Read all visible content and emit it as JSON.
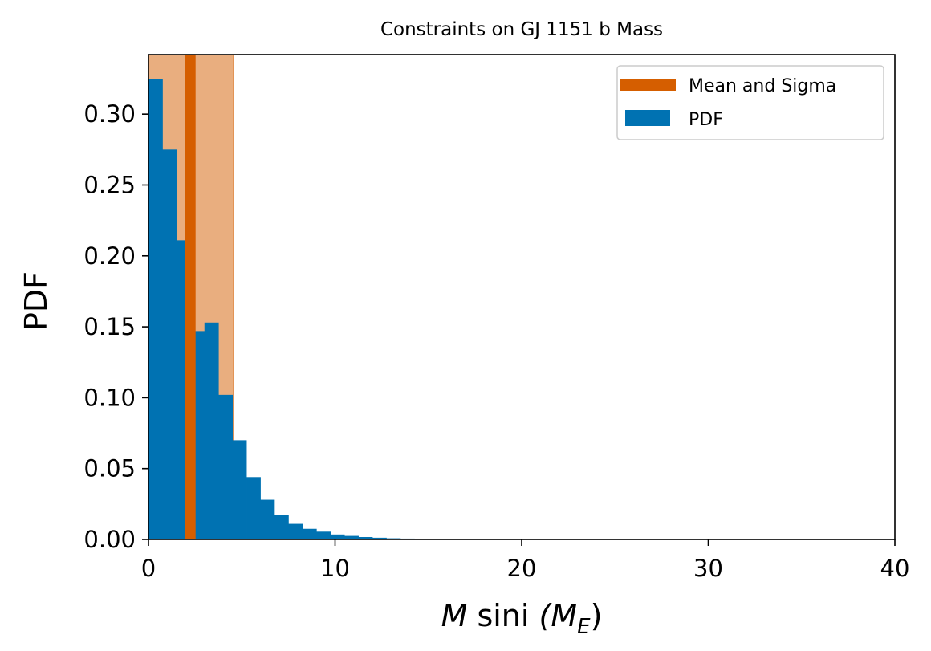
{
  "chart_data": {
    "type": "bar",
    "title": "Constraints on GJ 1151 b Mass",
    "xlabel": {
      "prefix": "M",
      "mid": " sini ",
      "suffix": "(M",
      "sub": "E",
      "close": ")"
    },
    "ylabel": "PDF",
    "xlim": [
      0,
      40
    ],
    "ylim": [
      0,
      0.342
    ],
    "xticks": [
      0,
      10,
      20,
      30,
      40
    ],
    "xtick_labels": [
      "0",
      "10",
      "20",
      "30",
      "40"
    ],
    "yticks": [
      0.0,
      0.05,
      0.1,
      0.15,
      0.2,
      0.25,
      0.3
    ],
    "ytick_labels": [
      "0.00",
      "0.05",
      "0.10",
      "0.15",
      "0.20",
      "0.25",
      "0.30"
    ],
    "grid": false,
    "legend_position": "top-right",
    "series": [
      {
        "name": "PDF",
        "kind": "histogram",
        "color": "#0072b2",
        "bin_width": 0.75,
        "bin_starts": [
          0,
          0.75,
          1.5,
          2.25,
          3.0,
          3.75,
          4.5,
          5.25,
          6.0,
          6.75,
          7.5,
          8.25,
          9.0,
          9.75,
          10.5,
          11.25,
          12.0,
          12.75,
          13.5
        ],
        "values": [
          0.325,
          0.275,
          0.211,
          0.147,
          0.153,
          0.102,
          0.07,
          0.044,
          0.028,
          0.017,
          0.011,
          0.0075,
          0.0055,
          0.0035,
          0.0025,
          0.0017,
          0.0012,
          0.0008,
          0.0006
        ]
      },
      {
        "name": "Mean and Sigma",
        "kind": "vline_band",
        "color": "#d55e00",
        "band_color": "#e9ae7f",
        "mean": 2.25,
        "band_range": [
          0.0,
          4.55
        ],
        "line_width_data": 0.55
      }
    ]
  }
}
